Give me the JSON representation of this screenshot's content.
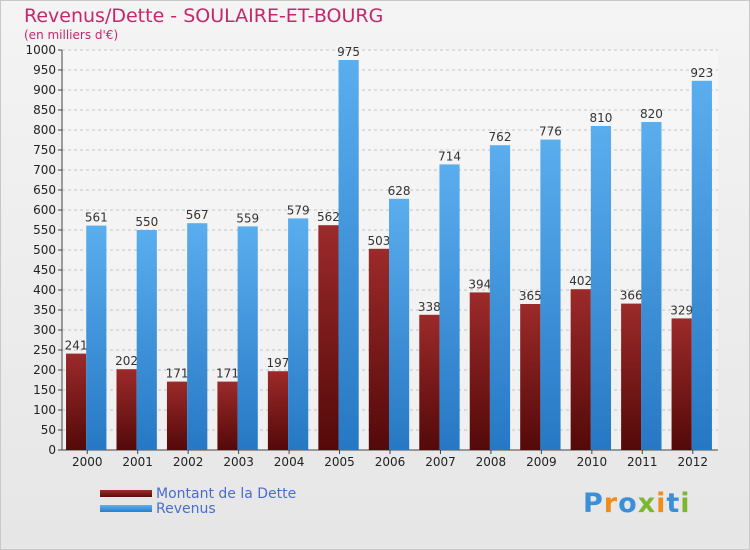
{
  "chart_data": {
    "type": "bar",
    "title": "Revenus/Dette - SOULAIRE-ET-BOURG",
    "subtitle": "(en milliers d'€)",
    "categories": [
      "2000",
      "2001",
      "2002",
      "2003",
      "2004",
      "2005",
      "2006",
      "2007",
      "2008",
      "2009",
      "2010",
      "2011",
      "2012"
    ],
    "series": [
      {
        "name": "Montant de la Dette",
        "color": "#7a1a1a",
        "values": [
          241,
          202,
          171,
          171,
          197,
          562,
          503,
          338,
          394,
          365,
          402,
          366,
          329
        ]
      },
      {
        "name": "Revenus",
        "color": "#3f94dd",
        "values": [
          561,
          550,
          567,
          559,
          579,
          975,
          628,
          714,
          762,
          776,
          810,
          820,
          923
        ]
      }
    ],
    "ylim": [
      0,
      1000
    ],
    "ytick_step": 50,
    "grid": true,
    "legend_position": "bottom-left"
  },
  "logo": {
    "letters": [
      {
        "ch": "P",
        "color": "#3b8fd8"
      },
      {
        "ch": "r",
        "color": "#f08c1c"
      },
      {
        "ch": "o",
        "color": "#3b8fd8"
      },
      {
        "ch": "x",
        "color": "#7cb82f"
      },
      {
        "ch": "i",
        "color": "#f08c1c"
      },
      {
        "ch": "t",
        "color": "#3b8fd8"
      },
      {
        "ch": "i",
        "color": "#7cb82f"
      }
    ]
  }
}
